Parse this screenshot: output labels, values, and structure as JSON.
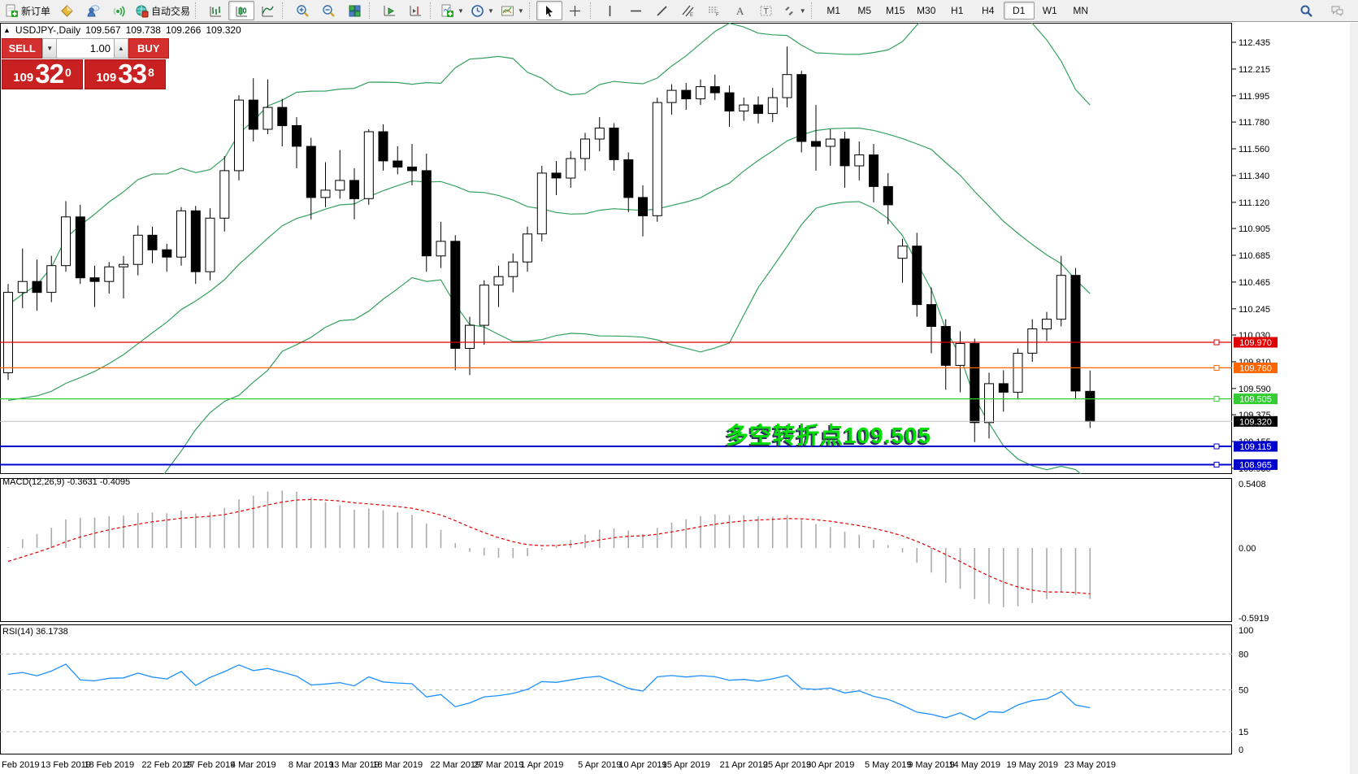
{
  "toolbar": {
    "new_order_label": "新订单",
    "autotrading_label": "自动交易",
    "timeframes": [
      "M1",
      "M5",
      "M15",
      "M30",
      "H1",
      "H4",
      "D1",
      "W1",
      "MN"
    ],
    "active_timeframe": "D1"
  },
  "order_panel": {
    "sell_label": "SELL",
    "buy_label": "BUY",
    "volume": "1.00",
    "sell_price_prefix": "109",
    "sell_price_big": "32",
    "sell_price_sup": "0",
    "buy_price_prefix": "109",
    "buy_price_big": "33",
    "buy_price_sup": "8"
  },
  "symbol_bar": {
    "symbol": "USDJPY-,Daily",
    "open": "109.567",
    "high": "109.738",
    "low": "109.266",
    "close": "109.320"
  },
  "annotation": {
    "text": "多空转折点109.505",
    "color": "#00dd00"
  },
  "indicator_labels": {
    "macd_name": "MACD(12,26,9)",
    "macd_main": "-0.3631",
    "macd_signal": "-0.4095",
    "rsi_name": "RSI(14)",
    "rsi_value": "36.1738"
  },
  "colors": {
    "bollinger": "#35a05f",
    "macd_hist": "#ababab",
    "macd_signal": "#e00000",
    "rsi_line": "#1e90ff",
    "bull_candle": "#ffffff",
    "bear_candle": "#000000"
  },
  "chart_data": {
    "type": "candlestick",
    "title": "USDJPY-,Daily",
    "timeframe": "D1",
    "ylim": [
      108.64,
      112.6
    ],
    "price_ticks": [
      "112.435",
      "112.215",
      "111.995",
      "111.780",
      "111.560",
      "111.340",
      "111.120",
      "110.905",
      "110.685",
      "110.465",
      "110.245",
      "110.030",
      "109.810",
      "109.590",
      "109.375",
      "109.155",
      "108.935"
    ],
    "hlines": [
      {
        "label": "109.970",
        "value": 109.97,
        "color": "#e00000",
        "box": "#e00000",
        "width": 1.3,
        "handle": true
      },
      {
        "label": "109.760",
        "value": 109.76,
        "color": "#ff6600",
        "box": "#ff6600",
        "width": 1.3,
        "handle": true
      },
      {
        "label": "109.505",
        "value": 109.505,
        "color": "#33cc33",
        "box": "#33cc33",
        "width": 1.3,
        "handle": true
      },
      {
        "label": "109.320",
        "value": 109.32,
        "color": "#c0c0c0",
        "box": "#000000",
        "width": 1,
        "handle": false
      },
      {
        "label": "109.115",
        "value": 109.115,
        "color": "#0000cc",
        "box": "#0000cc",
        "width": 2,
        "handle": true
      },
      {
        "label": "108.965",
        "value": 108.965,
        "color": "#0000cc",
        "box": "#0000cc",
        "width": 2,
        "handle": true
      }
    ],
    "x_labels": [
      {
        "label": "Feb 2019",
        "idx": 0
      },
      {
        "label": "13 Feb 2019",
        "idx": 4
      },
      {
        "label": "18 Feb 2019",
        "idx": 7
      },
      {
        "label": "22 Feb 2019",
        "idx": 11
      },
      {
        "label": "27 Feb 2019",
        "idx": 14
      },
      {
        "label": "4 Mar 2019",
        "idx": 17
      },
      {
        "label": "8 Mar 2019",
        "idx": 21
      },
      {
        "label": "13 Mar 2019",
        "idx": 24
      },
      {
        "label": "18 Mar 2019",
        "idx": 27
      },
      {
        "label": "22 Mar 2019",
        "idx": 31
      },
      {
        "label": "27 Mar 2019",
        "idx": 34
      },
      {
        "label": "1 Apr 2019",
        "idx": 37
      },
      {
        "label": "5 Apr 2019",
        "idx": 41
      },
      {
        "label": "10 Apr 2019",
        "idx": 44
      },
      {
        "label": "15 Apr 2019",
        "idx": 47
      },
      {
        "label": "21 Apr 2019",
        "idx": 51
      },
      {
        "label": "25 Apr 2019",
        "idx": 54
      },
      {
        "label": "30 Apr 2019",
        "idx": 57
      },
      {
        "label": "5 May 2019",
        "idx": 61
      },
      {
        "label": "9 May 2019",
        "idx": 64
      },
      {
        "label": "14 May 2019",
        "idx": 67
      },
      {
        "label": "19 May 2019",
        "idx": 71
      },
      {
        "label": "23 May 2019",
        "idx": 75
      }
    ],
    "warmup_closes": [
      109.95,
      110.1,
      110.0,
      109.85,
      109.7,
      109.55,
      109.45,
      109.3,
      109.15,
      109.05,
      108.95,
      108.9,
      109.0,
      109.15,
      109.35,
      109.5,
      109.45,
      109.6,
      109.7,
      109.72
    ],
    "ohlc": [
      [
        109.72,
        110.45,
        109.66,
        110.38
      ],
      [
        110.38,
        110.74,
        110.25,
        110.47
      ],
      [
        110.47,
        110.65,
        110.23,
        110.38
      ],
      [
        110.38,
        110.68,
        110.3,
        110.6
      ],
      [
        110.6,
        111.13,
        110.55,
        111.0
      ],
      [
        111.0,
        111.1,
        110.45,
        110.5
      ],
      [
        110.5,
        110.6,
        110.26,
        110.47
      ],
      [
        110.47,
        110.63,
        110.37,
        110.59
      ],
      [
        110.59,
        110.68,
        110.33,
        110.61
      ],
      [
        110.61,
        110.93,
        110.52,
        110.85
      ],
      [
        110.85,
        110.92,
        110.62,
        110.73
      ],
      [
        110.73,
        110.78,
        110.55,
        110.67
      ],
      [
        110.67,
        111.08,
        110.6,
        111.05
      ],
      [
        111.05,
        111.09,
        110.45,
        110.55
      ],
      [
        110.55,
        111.07,
        110.48,
        110.99
      ],
      [
        110.99,
        111.5,
        110.88,
        111.38
      ],
      [
        111.38,
        112.0,
        111.3,
        111.96
      ],
      [
        111.96,
        112.14,
        111.62,
        111.72
      ],
      [
        111.72,
        112.13,
        111.68,
        111.9
      ],
      [
        111.9,
        111.97,
        111.58,
        111.75
      ],
      [
        111.75,
        111.82,
        111.4,
        111.58
      ],
      [
        111.58,
        111.65,
        110.98,
        111.16
      ],
      [
        111.16,
        111.45,
        111.08,
        111.22
      ],
      [
        111.22,
        111.55,
        111.15,
        111.3
      ],
      [
        111.3,
        111.4,
        110.98,
        111.15
      ],
      [
        111.15,
        111.72,
        111.1,
        111.7
      ],
      [
        111.7,
        111.76,
        111.38,
        111.46
      ],
      [
        111.46,
        111.58,
        111.35,
        111.41
      ],
      [
        111.41,
        111.6,
        111.26,
        111.38
      ],
      [
        111.38,
        111.52,
        110.55,
        110.68
      ],
      [
        110.68,
        110.96,
        110.58,
        110.8
      ],
      [
        110.8,
        110.85,
        109.74,
        109.92
      ],
      [
        109.92,
        110.18,
        109.7,
        110.11
      ],
      [
        110.11,
        110.48,
        109.95,
        110.44
      ],
      [
        110.44,
        110.6,
        110.26,
        110.51
      ],
      [
        110.51,
        110.7,
        110.38,
        110.63
      ],
      [
        110.63,
        110.92,
        110.55,
        110.86
      ],
      [
        110.86,
        111.42,
        110.8,
        111.36
      ],
      [
        111.36,
        111.46,
        111.18,
        111.32
      ],
      [
        111.32,
        111.54,
        111.24,
        111.48
      ],
      [
        111.48,
        111.69,
        111.38,
        111.64
      ],
      [
        111.64,
        111.82,
        111.54,
        111.73
      ],
      [
        111.73,
        111.77,
        111.38,
        111.47
      ],
      [
        111.47,
        111.53,
        111.04,
        111.16
      ],
      [
        111.16,
        111.26,
        110.84,
        111.01
      ],
      [
        111.01,
        111.98,
        110.96,
        111.94
      ],
      [
        111.94,
        112.09,
        111.84,
        112.04
      ],
      [
        112.04,
        112.1,
        111.88,
        111.97
      ],
      [
        111.97,
        112.13,
        111.92,
        112.07
      ],
      [
        112.07,
        112.17,
        111.96,
        112.02
      ],
      [
        112.02,
        112.08,
        111.74,
        111.87
      ],
      [
        111.87,
        111.98,
        111.79,
        111.92
      ],
      [
        111.92,
        111.99,
        111.77,
        111.85
      ],
      [
        111.85,
        112.06,
        111.78,
        111.98
      ],
      [
        111.98,
        112.4,
        111.9,
        112.17
      ],
      [
        112.17,
        112.2,
        111.53,
        111.62
      ],
      [
        111.62,
        111.92,
        111.38,
        111.58
      ],
      [
        111.58,
        111.72,
        111.42,
        111.64
      ],
      [
        111.64,
        111.7,
        111.24,
        111.42
      ],
      [
        111.42,
        111.62,
        111.3,
        111.51
      ],
      [
        111.51,
        111.6,
        111.12,
        111.25
      ],
      [
        111.25,
        111.36,
        110.94,
        111.1
      ],
      [
        110.66,
        110.82,
        110.46,
        110.76
      ],
      [
        110.76,
        110.87,
        110.18,
        110.28
      ],
      [
        110.28,
        110.42,
        109.88,
        110.1
      ],
      [
        110.1,
        110.16,
        109.58,
        109.78
      ],
      [
        109.78,
        110.06,
        109.56,
        109.96
      ],
      [
        109.96,
        110.0,
        109.15,
        109.31
      ],
      [
        109.31,
        109.72,
        109.18,
        109.63
      ],
      [
        109.63,
        109.74,
        109.4,
        109.56
      ],
      [
        109.56,
        109.92,
        109.5,
        109.88
      ],
      [
        109.88,
        110.16,
        109.81,
        110.08
      ],
      [
        110.08,
        110.22,
        109.98,
        110.16
      ],
      [
        110.16,
        110.68,
        110.1,
        110.52
      ],
      [
        110.52,
        110.58,
        109.5,
        109.57
      ],
      [
        109.567,
        109.738,
        109.266,
        109.32
      ]
    ],
    "bollinger": {
      "period": 20,
      "deviation": 2
    },
    "panes": [
      {
        "name": "MACD",
        "params": "12,26,9",
        "axis_ticks": [
          "0.5408",
          "0.00",
          "-0.5919"
        ],
        "ylim": [
          -0.5919,
          0.5408
        ]
      },
      {
        "name": "RSI",
        "params": "14",
        "axis_ticks": [
          "100",
          "80",
          "50",
          "15",
          "0"
        ],
        "levels": [
          80,
          50,
          15
        ],
        "ylim": [
          0,
          100
        ]
      }
    ]
  }
}
